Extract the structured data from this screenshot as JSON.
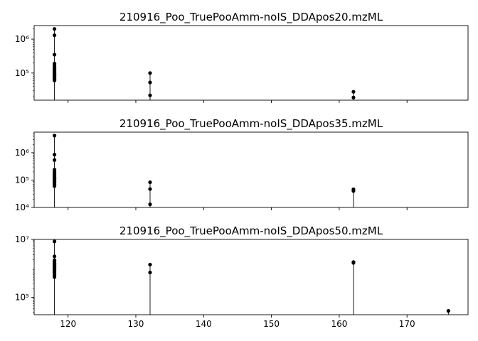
{
  "chart_data": {
    "type": "scatter",
    "subtype": "stem",
    "sharex": true,
    "xlim": [
      115,
      179
    ],
    "xticks": [
      120,
      130,
      140,
      150,
      160,
      170
    ],
    "yscale": "log",
    "marker_color": "#000000",
    "panels": [
      {
        "title": "210916_Poo_TruePooAmm-noIS_DDApos20.mzML",
        "ylim_log10": [
          4.2,
          6.4
        ],
        "yticks": [
          {
            "exp": 6,
            "label": "10⁶"
          },
          {
            "exp": 5,
            "label": "10⁵"
          }
        ],
        "stems": [
          {
            "x": 118.0,
            "y": [
              2000000,
              1300000,
              350000,
              190000,
              170000,
              150000,
              140000,
              130000,
              120000,
              110000,
              100000,
              95000,
              90000,
              85000,
              80000,
              75000,
              70000,
              65000,
              60000
            ]
          },
          {
            "x": 132.1,
            "y": [
              100000,
              53000,
              22000
            ]
          },
          {
            "x": 162.1,
            "y": [
              28000,
              19000
            ]
          }
        ]
      },
      {
        "title": "210916_Poo_TruePooAmm-noIS_DDApos35.mzML",
        "ylim_log10": [
          4.0,
          6.75
        ],
        "yticks": [
          {
            "exp": 6,
            "label": "10⁶"
          },
          {
            "exp": 5,
            "label": "10⁵"
          },
          {
            "exp": 4,
            "label": "10⁴"
          }
        ],
        "stems": [
          {
            "x": 118.0,
            "y": [
              4200000,
              850000,
              540000,
              240000,
              200000,
              170000,
              150000,
              130000,
              120000,
              110000,
              100000,
              90000,
              80000,
              70000,
              60000
            ]
          },
          {
            "x": 132.1,
            "y": [
              83000,
              47000,
              13000
            ]
          },
          {
            "x": 162.1,
            "y": [
              46000,
              40000
            ]
          }
        ]
      },
      {
        "title": "210916_Poo_TruePooAmm-noIS_DDApos50.mzML",
        "ylim_log10": [
          4.4,
          7.0
        ],
        "yticks": [
          {
            "exp": 7,
            "label": "10⁷"
          },
          {
            "exp": 5,
            "label": "10⁵"
          }
        ],
        "stems": [
          {
            "x": 118.0,
            "y": [
              8500000,
              2600000,
              1900000,
              1700000,
              1500000,
              1400000,
              1300000,
              1200000,
              1100000,
              1000000,
              900000,
              800000,
              700000,
              600000,
              500000
            ]
          },
          {
            "x": 132.1,
            "y": [
              1350000,
              720000
            ]
          },
          {
            "x": 162.1,
            "y": [
              1650000,
              1550000
            ]
          },
          {
            "x": 176.1,
            "y": [
              34000
            ]
          }
        ]
      }
    ]
  }
}
